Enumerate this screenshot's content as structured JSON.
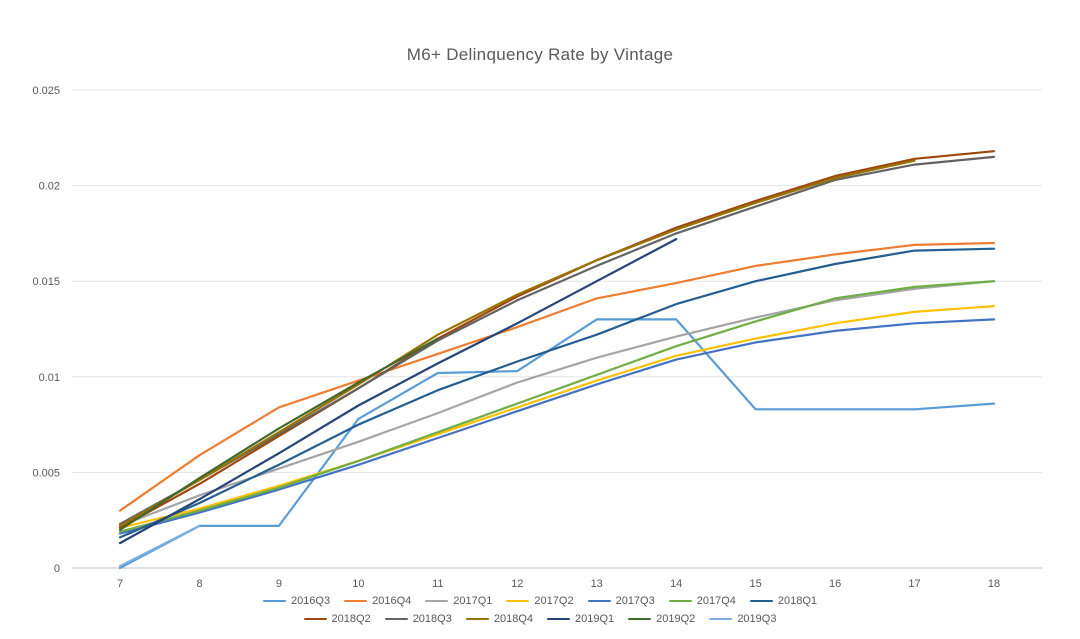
{
  "colors": {
    "background": "#FFFFFF",
    "gridline": "#E4E4E4",
    "axis_line": "#BFBFBF",
    "axis_text": "#595959",
    "title_text": "#595959",
    "legend_text": "#595959"
  },
  "chart_data": {
    "type": "line",
    "title": "M6+ Delinquency Rate by Vintage",
    "xlabel": "",
    "ylabel": "",
    "xlim": [
      7,
      18
    ],
    "ylim": [
      0,
      0.025
    ],
    "grid": true,
    "legend_position": "bottom",
    "xticks": [
      7,
      8,
      9,
      10,
      11,
      12,
      13,
      14,
      15,
      16,
      17,
      18
    ],
    "yticks": [
      {
        "value": 0,
        "label": "0"
      },
      {
        "value": 0.005,
        "label": "0.005"
      },
      {
        "value": 0.01,
        "label": "0.01"
      },
      {
        "value": 0.015,
        "label": "0.015"
      },
      {
        "value": 0.02,
        "label": "0.02"
      },
      {
        "value": 0.025,
        "label": "0.025"
      }
    ],
    "legend_rows": [
      [
        "2016Q3",
        "2016Q4",
        "2017Q1",
        "2017Q2",
        "2017Q3",
        "2017Q4",
        "2018Q1"
      ],
      [
        "2018Q2",
        "2018Q3",
        "2018Q4",
        "2019Q1",
        "2019Q2",
        "2019Q3"
      ]
    ],
    "series": [
      {
        "name": "2016Q3",
        "color": "#5B9BD5",
        "x": [
          7,
          8,
          9,
          10,
          11,
          12,
          13,
          14,
          15,
          16,
          17,
          18
        ],
        "values": [
          0.0,
          0.0022,
          0.0022,
          0.0078,
          0.0102,
          0.0103,
          0.013,
          0.013,
          0.0083,
          0.0083,
          0.0083,
          0.0086
        ]
      },
      {
        "name": "2016Q4",
        "color": "#ED7D31",
        "x": [
          7,
          8,
          9,
          10,
          11,
          12,
          13,
          14,
          15,
          16,
          17,
          18
        ],
        "values": [
          0.003,
          0.0059,
          0.0084,
          0.0098,
          0.0112,
          0.0126,
          0.0141,
          0.0149,
          0.0158,
          0.0164,
          0.0169,
          0.017
        ]
      },
      {
        "name": "2017Q1",
        "color": "#A5A5A5",
        "x": [
          7,
          8,
          9,
          10,
          11,
          12,
          13,
          14,
          15,
          16,
          17,
          18
        ],
        "values": [
          0.0022,
          0.0038,
          0.0052,
          0.0066,
          0.0081,
          0.0097,
          0.011,
          0.0121,
          0.0131,
          0.014,
          0.0146,
          0.015
        ]
      },
      {
        "name": "2017Q2",
        "color": "#FFC000",
        "x": [
          7,
          8,
          9,
          10,
          11,
          12,
          13,
          14,
          15,
          16,
          17,
          18
        ],
        "values": [
          0.0021,
          0.0031,
          0.0043,
          0.0056,
          0.007,
          0.0084,
          0.0098,
          0.0111,
          0.012,
          0.0128,
          0.0134,
          0.0137
        ]
      },
      {
        "name": "2017Q3",
        "color": "#4472C4",
        "x": [
          7,
          8,
          9,
          10,
          11,
          12,
          13,
          14,
          15,
          16,
          17,
          18
        ],
        "values": [
          0.0018,
          0.0029,
          0.0041,
          0.0054,
          0.0068,
          0.0082,
          0.0096,
          0.0109,
          0.0118,
          0.0124,
          0.0128,
          0.013
        ]
      },
      {
        "name": "2017Q4",
        "color": "#70AD47",
        "x": [
          7,
          8,
          9,
          10,
          11,
          12,
          13,
          14,
          15,
          16,
          17,
          18
        ],
        "values": [
          0.0019,
          0.003,
          0.0042,
          0.0056,
          0.0071,
          0.0086,
          0.0101,
          0.0116,
          0.0129,
          0.0141,
          0.0147,
          0.015
        ]
      },
      {
        "name": "2018Q1",
        "color": "#255E91",
        "x": [
          7,
          8,
          9,
          10,
          11,
          12,
          13,
          14,
          15,
          16,
          17,
          18
        ],
        "values": [
          0.0016,
          0.0034,
          0.0054,
          0.0075,
          0.0093,
          0.0108,
          0.0122,
          0.0138,
          0.015,
          0.0159,
          0.0166,
          0.0167
        ]
      },
      {
        "name": "2018Q2",
        "color": "#9E480E",
        "x": [
          7,
          8,
          9,
          10,
          11,
          12,
          13,
          14,
          15,
          16,
          17,
          18
        ],
        "values": [
          0.0021,
          0.0044,
          0.0069,
          0.0094,
          0.012,
          0.0142,
          0.0161,
          0.0178,
          0.0192,
          0.0205,
          0.0214,
          0.0218
        ]
      },
      {
        "name": "2018Q3",
        "color": "#636363",
        "x": [
          7,
          8,
          9,
          10,
          11,
          12,
          13,
          14,
          15,
          16,
          17,
          18
        ],
        "values": [
          0.0023,
          0.0046,
          0.007,
          0.0094,
          0.0119,
          0.014,
          0.0158,
          0.0175,
          0.0189,
          0.0203,
          0.0211,
          0.0215
        ]
      },
      {
        "name": "2018Q4",
        "color": "#997300",
        "x": [
          7,
          8,
          9,
          10,
          11,
          12,
          13,
          14,
          15,
          16,
          17
        ],
        "values": [
          0.0022,
          0.0046,
          0.0071,
          0.0096,
          0.0122,
          0.0143,
          0.0161,
          0.0177,
          0.0191,
          0.0204,
          0.0213
        ]
      },
      {
        "name": "2019Q1",
        "color": "#264478",
        "x": [
          7,
          8,
          9,
          10,
          11,
          12,
          13,
          14
        ],
        "values": [
          0.0013,
          0.0036,
          0.006,
          0.0085,
          0.0107,
          0.0128,
          0.015,
          0.0172
        ]
      },
      {
        "name": "2019Q2",
        "color": "#43682B",
        "x": [
          7,
          8,
          9,
          10,
          11
        ],
        "values": [
          0.002,
          0.0047,
          0.0073,
          0.0097,
          0.012
        ]
      },
      {
        "name": "2019Q3",
        "color": "#7CAFDD",
        "x": [
          7,
          8
        ],
        "values": [
          0.0001,
          0.0022
        ]
      }
    ]
  }
}
